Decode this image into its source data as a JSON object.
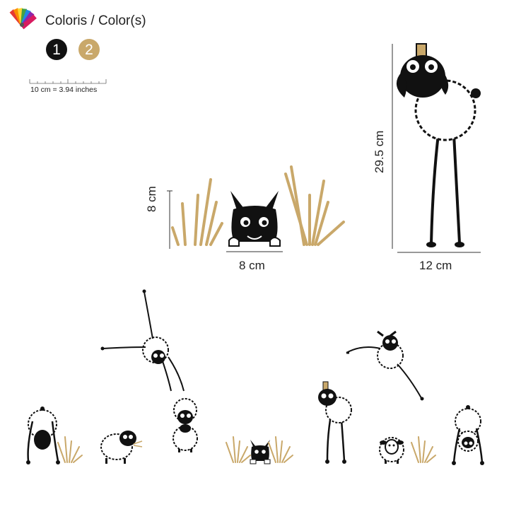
{
  "header": {
    "title": "Coloris / Color(s)",
    "icon": "color-palette-icon"
  },
  "swatches": [
    {
      "label": "1",
      "color": "#111111"
    },
    {
      "label": "2",
      "color": "#c9a86a"
    }
  ],
  "scale": {
    "label": "10 cm = 3.94 inches"
  },
  "dimensions": {
    "small_height": "8 cm",
    "small_width": "8 cm",
    "large_height": "29.5 cm",
    "large_width": "12 cm"
  },
  "colors": {
    "ink": "#111111",
    "accent": "#c9a86a"
  }
}
